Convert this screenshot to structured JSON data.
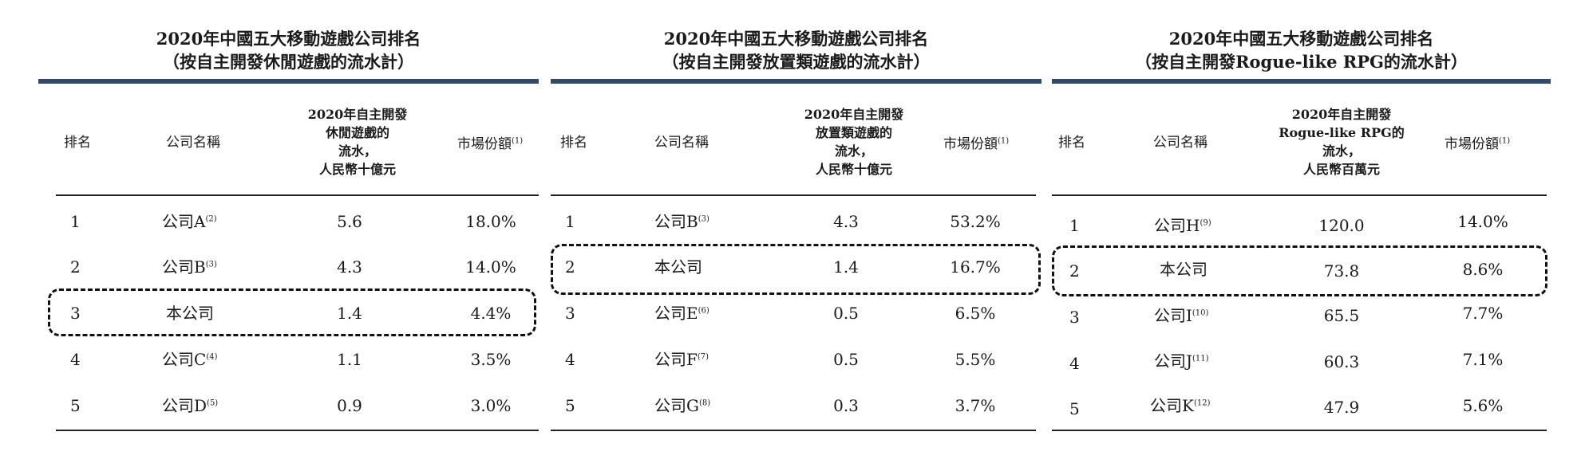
{
  "tables": [
    {
      "title_line1": "2020年中國五大移動遊戲公司排名",
      "title_line2": "（按自主開發休閒遊戲的流水計）",
      "headers": {
        "rank": "排名",
        "company": "公司名稱",
        "revenue_lines": [
          "2020年自主開發",
          "休閒遊戲的",
          "流水，",
          "人民幣十億元"
        ],
        "share": "市場份額",
        "share_note": "(1)"
      },
      "rows": [
        {
          "rank": "1",
          "company": "公司A",
          "note": "(2)",
          "value": "5.6",
          "share": "18.0%"
        },
        {
          "rank": "2",
          "company": "公司B",
          "note": "(3)",
          "value": "4.3",
          "share": "14.0%"
        },
        {
          "rank": "3",
          "company": "本公司",
          "note": "",
          "value": "1.4",
          "share": "4.4%"
        },
        {
          "rank": "4",
          "company": "公司C",
          "note": "(4)",
          "value": "1.1",
          "share": "3.5%"
        },
        {
          "rank": "5",
          "company": "公司D",
          "note": "(5)",
          "value": "0.9",
          "share": "3.0%"
        }
      ],
      "highlighted_row": 3
    },
    {
      "title_line1": "2020年中國五大移動遊戲公司排名",
      "title_line2": "（按自主開發放置類遊戲的流水計）",
      "headers": {
        "rank": "排名",
        "company": "公司名稱",
        "revenue_lines": [
          "2020年自主開發",
          "放置類遊戲的",
          "流水，",
          "人民幣十億元"
        ],
        "share": "市場份額",
        "share_note": "(1)"
      },
      "rows": [
        {
          "rank": "1",
          "company": "公司B",
          "note": "(3)",
          "value": "4.3",
          "share": "53.2%"
        },
        {
          "rank": "2",
          "company": "本公司",
          "note": "",
          "value": "1.4",
          "share": "16.7%"
        },
        {
          "rank": "3",
          "company": "公司E",
          "note": "(6)",
          "value": "0.5",
          "share": "6.5%"
        },
        {
          "rank": "4",
          "company": "公司F",
          "note": "(7)",
          "value": "0.5",
          "share": "5.5%"
        },
        {
          "rank": "5",
          "company": "公司G",
          "note": "(8)",
          "value": "0.3",
          "share": "3.7%"
        }
      ],
      "highlighted_row": 2
    },
    {
      "title_line1": "2020年中國五大移動遊戲公司排名",
      "title_line2": "（按自主開發Rogue-like RPG的流水計）",
      "headers": {
        "rank": "排名",
        "company": "公司名稱",
        "revenue_lines": [
          "2020年自主開發",
          "Rogue-like RPG的",
          "流水，",
          "人民幣百萬元"
        ],
        "share": "市場份額",
        "share_note": "(1)"
      },
      "rows": [
        {
          "rank": "1",
          "company": "公司H",
          "note": "(9)",
          "value": "120.0",
          "share": "14.0%"
        },
        {
          "rank": "2",
          "company": "本公司",
          "note": "",
          "value": "73.8",
          "share": "8.6%"
        },
        {
          "rank": "3",
          "company": "公司I",
          "note": "(10)",
          "value": "65.5",
          "share": "7.7%"
        },
        {
          "rank": "4",
          "company": "公司J",
          "note": "(11)",
          "value": "60.3",
          "share": "7.1%"
        },
        {
          "rank": "5",
          "company": "公司K",
          "note": "(12)",
          "value": "47.9",
          "share": "5.6%"
        }
      ],
      "highlighted_row": 2
    }
  ]
}
